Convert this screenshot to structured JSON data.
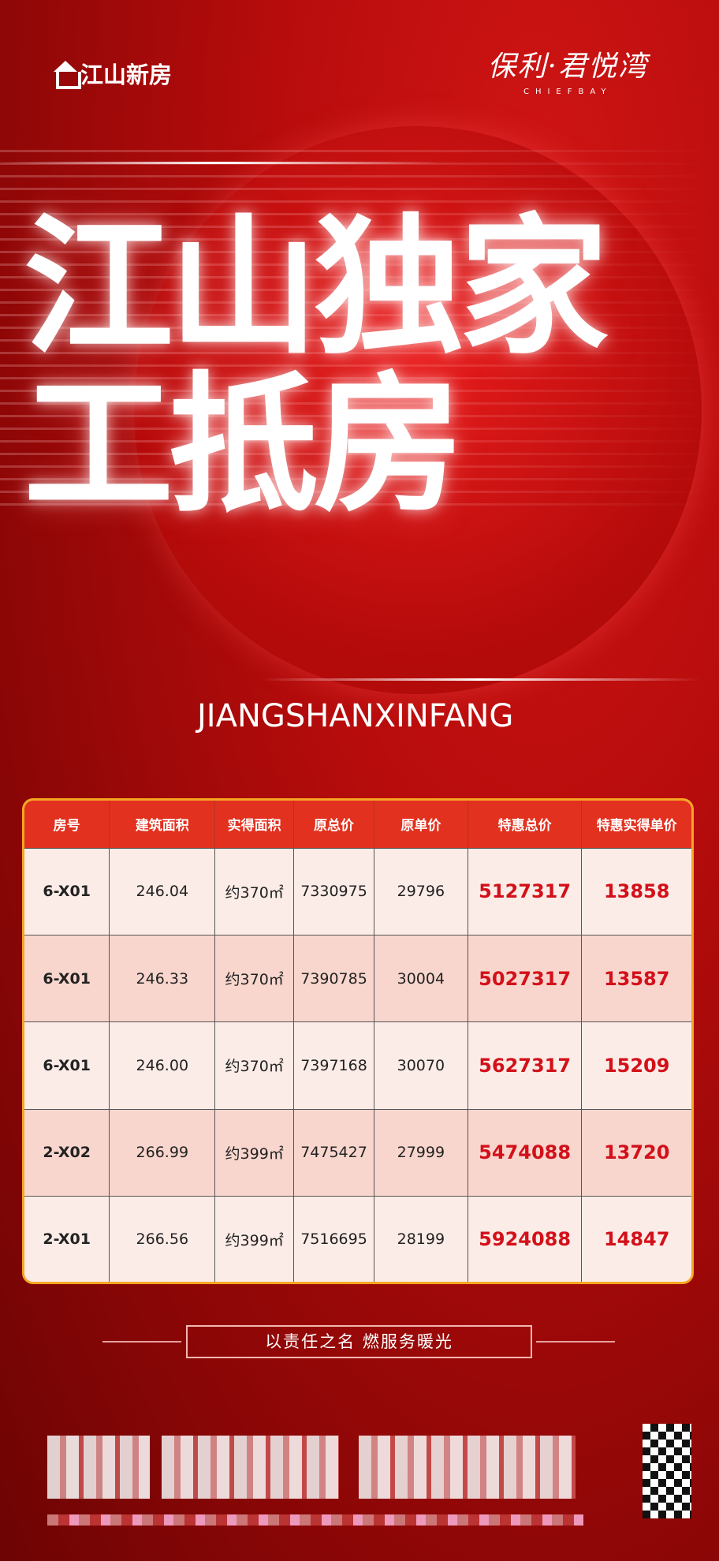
{
  "header": {
    "left_logo": "江山新房",
    "right_logo_cn": "保利·君悦湾",
    "right_logo_en": "CHIEFBAY"
  },
  "title": {
    "line1": "江山独家",
    "line2": "工抵房",
    "subtitle": "JIANGSHANXINFANG"
  },
  "table": {
    "columns": [
      "房号",
      "建筑面积",
      "实得面积",
      "原总价",
      "原单价",
      "特惠总价",
      "特惠实得单价"
    ],
    "rows": [
      [
        "6-X01",
        "246.04",
        "约370㎡",
        "7330975",
        "29796",
        "5127317",
        "13858"
      ],
      [
        "6-X01",
        "246.33",
        "约370㎡",
        "7390785",
        "30004",
        "5027317",
        "13587"
      ],
      [
        "6-X01",
        "246.00",
        "约370㎡",
        "7397168",
        "30070",
        "5627317",
        "15209"
      ],
      [
        "2-X02",
        "266.99",
        "约399㎡",
        "7475427",
        "27999",
        "5474088",
        "13720"
      ],
      [
        "2-X01",
        "266.56",
        "约399㎡",
        "7516695",
        "28199",
        "5924088",
        "14847"
      ]
    ]
  },
  "slogan": "以责任之名  燃服务暖光",
  "colors": {
    "background": "#b80c0c",
    "header_row": "#e2311f",
    "highlight": "#d3101a",
    "border": "#f5a623"
  }
}
